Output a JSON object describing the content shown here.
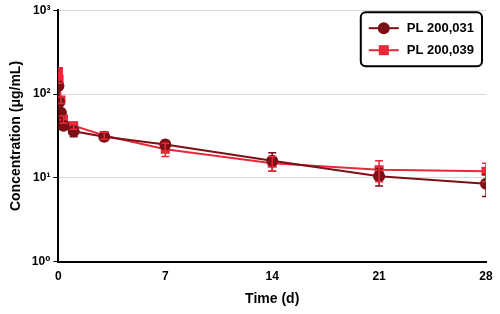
{
  "chart_data": {
    "type": "line",
    "x_label": "Time (d)",
    "y_label": "Concentration (μg/mL)",
    "x": [
      0.003,
      0.042,
      0.167,
      0.333,
      1,
      3,
      7,
      14,
      21,
      28
    ],
    "series": [
      {
        "name": "PL 200,031",
        "color": "#7b1016",
        "marker": "circle",
        "values": [
          125,
          80,
          60,
          42,
          36,
          31,
          25,
          16,
          10.5,
          8.5
        ],
        "errors": [
          10,
          8,
          6,
          4,
          5,
          3,
          3,
          4,
          2.5,
          2.5
        ]
      },
      {
        "name": "PL 200,039",
        "color": "#e8293a",
        "marker": "square",
        "values": [
          185,
          150,
          85,
          50,
          42,
          32,
          22,
          15,
          12.5,
          12
        ],
        "errors": [
          20,
          15,
          8,
          5,
          4,
          3,
          4,
          3,
          3.5,
          3
        ]
      }
    ],
    "xlim": [
      0,
      28
    ],
    "xticks": [
      0,
      7,
      14,
      21,
      28
    ],
    "ylim": [
      1,
      1000
    ],
    "yticks": [
      {
        "value": 1,
        "label": "10⁰"
      },
      {
        "value": 10,
        "label": "10¹"
      },
      {
        "value": 100,
        "label": "10²"
      },
      {
        "value": 1000,
        "label": "10³"
      }
    ],
    "log": "y",
    "grid": "y",
    "legend": "top right"
  }
}
